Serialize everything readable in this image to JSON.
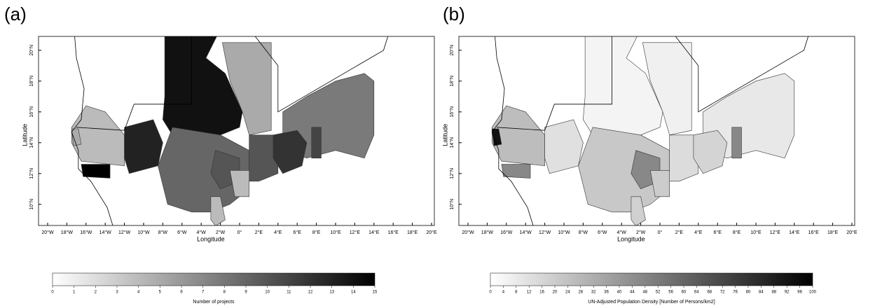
{
  "panels": [
    {
      "label": "(a)",
      "x_axis": {
        "title": "Longitude",
        "ticks": [
          "20°W",
          "18°W",
          "16°W",
          "14°W",
          "12°W",
          "10°W",
          "8°W",
          "6°W",
          "4°W",
          "2°W",
          "0°",
          "2°E",
          "4°E",
          "6°E",
          "8°E",
          "10°E",
          "12°E",
          "14°E",
          "16°E",
          "18°E",
          "20°E"
        ]
      },
      "y_axis": {
        "title": "Latitude",
        "ticks": [
          "10°N",
          "12°N",
          "14°N",
          "16°N",
          "18°N",
          "20°N"
        ]
      },
      "colorbar": {
        "title": "Number of projects",
        "ticks": [
          0,
          1,
          2,
          3,
          4,
          5,
          6,
          7,
          8,
          9,
          10,
          11,
          12,
          13,
          14,
          15
        ]
      }
    },
    {
      "label": "(b)",
      "x_axis": {
        "title": "Longitude",
        "ticks": [
          "20°W",
          "18°W",
          "16°W",
          "14°W",
          "12°W",
          "10°W",
          "8°W",
          "6°W",
          "4°W",
          "2°W",
          "0°",
          "2°E",
          "4°E",
          "6°E",
          "8°E",
          "10°E",
          "12°E",
          "14°E",
          "16°E",
          "18°E",
          "20°E"
        ]
      },
      "y_axis": {
        "title": "Latitude",
        "ticks": [
          "10°N",
          "12°N",
          "14°N",
          "16°N",
          "18°N",
          "20°N"
        ]
      },
      "colorbar": {
        "title": "UN-Adjusted Population Density [Number of Persons/km2]",
        "ticks": [
          0,
          4,
          8,
          12,
          16,
          20,
          24,
          28,
          32,
          36,
          40,
          44,
          48,
          52,
          56,
          60,
          64,
          68,
          72,
          76,
          80,
          84,
          88,
          92,
          96,
          100
        ]
      }
    }
  ]
}
